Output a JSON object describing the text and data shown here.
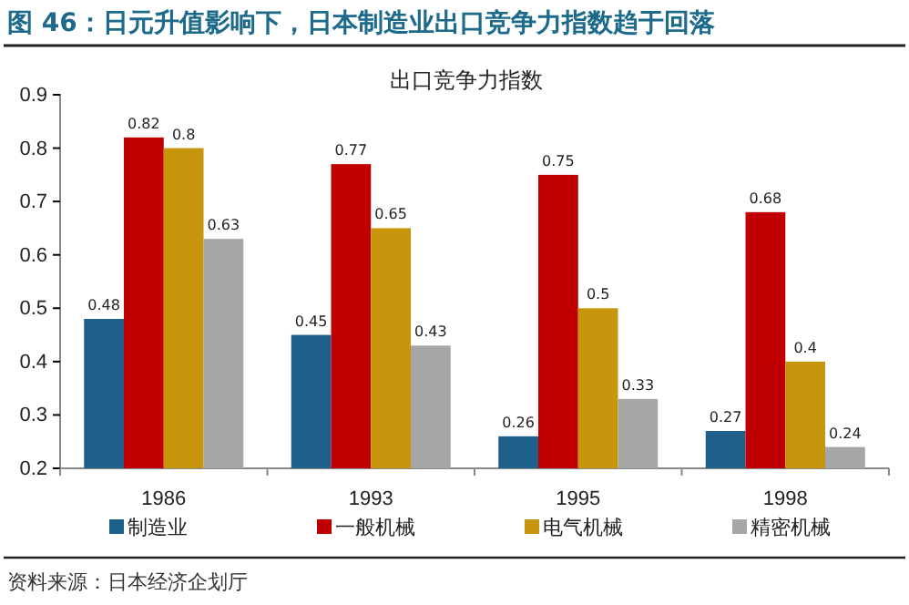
{
  "chart_data": {
    "type": "bar",
    "title": "图 46：日元升值影响下，日本制造业出口竞争力指数趋于回落",
    "subtitle": "出口竞争力指数",
    "categories": [
      "1986",
      "1993",
      "1995",
      "1998"
    ],
    "series": [
      {
        "name": "制造业",
        "color": "#1f5f8b",
        "values": [
          0.48,
          0.45,
          0.26,
          0.27
        ]
      },
      {
        "name": "一般机械",
        "color": "#c00000",
        "values": [
          0.82,
          0.77,
          0.75,
          0.68
        ]
      },
      {
        "name": "电气机械",
        "color": "#c8960c",
        "values": [
          0.8,
          0.65,
          0.5,
          0.4
        ]
      },
      {
        "name": "精密机械",
        "color": "#a6a6a6",
        "values": [
          0.63,
          0.43,
          0.33,
          0.24
        ]
      }
    ],
    "ylim": [
      0.2,
      0.9
    ],
    "yticks": [
      0.2,
      0.3,
      0.4,
      0.5,
      0.6,
      0.7,
      0.8,
      0.9
    ],
    "grid": false,
    "legend": "bottom",
    "data_labels": true,
    "annotations": [
      "资料来源：日本经济企划厅"
    ]
  }
}
